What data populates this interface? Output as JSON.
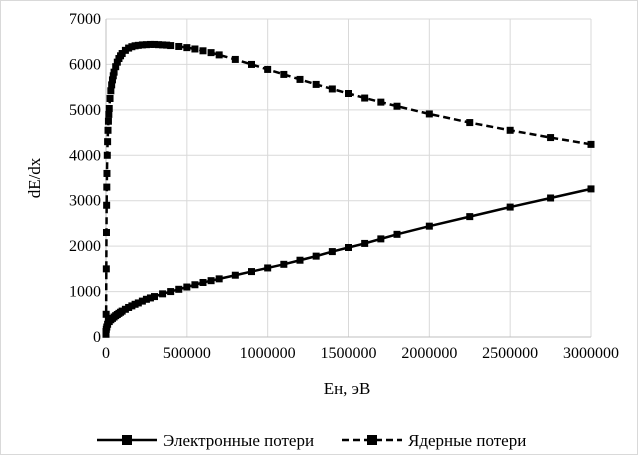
{
  "chart_data": {
    "type": "line",
    "xlabel": "Ен, эВ",
    "ylabel": "dE/dx",
    "xlim": [
      0,
      3000000
    ],
    "ylim": [
      0,
      7000
    ],
    "xticks": [
      0,
      500000,
      1000000,
      1500000,
      2000000,
      2500000,
      3000000
    ],
    "yticks": [
      0,
      1000,
      2000,
      3000,
      4000,
      5000,
      6000,
      7000
    ],
    "xtick_labels": [
      "0",
      "500000",
      "1000000",
      "1500000",
      "2000000",
      "2500000",
      "3000000"
    ],
    "ytick_labels": [
      "0",
      "1000",
      "2000",
      "3000",
      "4000",
      "5000",
      "6000",
      "7000"
    ],
    "grid": true,
    "legend_position": "bottom",
    "series": [
      {
        "name": "Электронные потери",
        "style": "solid",
        "color": "#000000",
        "marker": "square",
        "points": [
          [
            0,
            120
          ],
          [
            2000,
            170
          ],
          [
            5000,
            220
          ],
          [
            10000,
            280
          ],
          [
            20000,
            340
          ],
          [
            30000,
            380
          ],
          [
            40000,
            410
          ],
          [
            50000,
            440
          ],
          [
            60000,
            470
          ],
          [
            70000,
            495
          ],
          [
            80000,
            520
          ],
          [
            90000,
            545
          ],
          [
            100000,
            570
          ],
          [
            120000,
            610
          ],
          [
            140000,
            650
          ],
          [
            160000,
            685
          ],
          [
            180000,
            720
          ],
          [
            200000,
            750
          ],
          [
            225000,
            790
          ],
          [
            250000,
            830
          ],
          [
            275000,
            860
          ],
          [
            300000,
            890
          ],
          [
            350000,
            950
          ],
          [
            400000,
            1000
          ],
          [
            450000,
            1050
          ],
          [
            500000,
            1100
          ],
          [
            550000,
            1150
          ],
          [
            600000,
            1200
          ],
          [
            650000,
            1240
          ],
          [
            700000,
            1280
          ],
          [
            800000,
            1360
          ],
          [
            900000,
            1440
          ],
          [
            1000000,
            1520
          ],
          [
            1100000,
            1600
          ],
          [
            1200000,
            1690
          ],
          [
            1300000,
            1780
          ],
          [
            1400000,
            1880
          ],
          [
            1500000,
            1970
          ],
          [
            1600000,
            2060
          ],
          [
            1700000,
            2160
          ],
          [
            1800000,
            2260
          ],
          [
            2000000,
            2440
          ],
          [
            2250000,
            2650
          ],
          [
            2500000,
            2860
          ],
          [
            2750000,
            3060
          ],
          [
            3000000,
            3260
          ]
        ]
      },
      {
        "name": "Ядерные потери",
        "style": "dashed",
        "color": "#000000",
        "marker": "square",
        "points": [
          [
            0,
            60
          ],
          [
            1000,
            500
          ],
          [
            2000,
            1500
          ],
          [
            3000,
            2300
          ],
          [
            4000,
            2900
          ],
          [
            5000,
            3300
          ],
          [
            6000,
            3600
          ],
          [
            8000,
            4000
          ],
          [
            10000,
            4300
          ],
          [
            12500,
            4550
          ],
          [
            15000,
            4750
          ],
          [
            17500,
            4900
          ],
          [
            20000,
            5030
          ],
          [
            25000,
            5250
          ],
          [
            30000,
            5420
          ],
          [
            35000,
            5550
          ],
          [
            40000,
            5660
          ],
          [
            45000,
            5750
          ],
          [
            50000,
            5830
          ],
          [
            60000,
            5950
          ],
          [
            70000,
            6050
          ],
          [
            80000,
            6130
          ],
          [
            90000,
            6190
          ],
          [
            100000,
            6240
          ],
          [
            120000,
            6310
          ],
          [
            140000,
            6360
          ],
          [
            160000,
            6390
          ],
          [
            180000,
            6410
          ],
          [
            200000,
            6420
          ],
          [
            225000,
            6430
          ],
          [
            250000,
            6435
          ],
          [
            275000,
            6440
          ],
          [
            300000,
            6440
          ],
          [
            325000,
            6435
          ],
          [
            350000,
            6430
          ],
          [
            375000,
            6425
          ],
          [
            400000,
            6415
          ],
          [
            450000,
            6395
          ],
          [
            500000,
            6370
          ],
          [
            550000,
            6340
          ],
          [
            600000,
            6300
          ],
          [
            650000,
            6260
          ],
          [
            700000,
            6210
          ],
          [
            800000,
            6110
          ],
          [
            900000,
            6000
          ],
          [
            1000000,
            5890
          ],
          [
            1100000,
            5780
          ],
          [
            1200000,
            5670
          ],
          [
            1300000,
            5560
          ],
          [
            1400000,
            5460
          ],
          [
            1500000,
            5360
          ],
          [
            1600000,
            5260
          ],
          [
            1700000,
            5170
          ],
          [
            1800000,
            5080
          ],
          [
            2000000,
            4910
          ],
          [
            2250000,
            4720
          ],
          [
            2500000,
            4550
          ],
          [
            2750000,
            4390
          ],
          [
            3000000,
            4240
          ]
        ]
      }
    ]
  }
}
